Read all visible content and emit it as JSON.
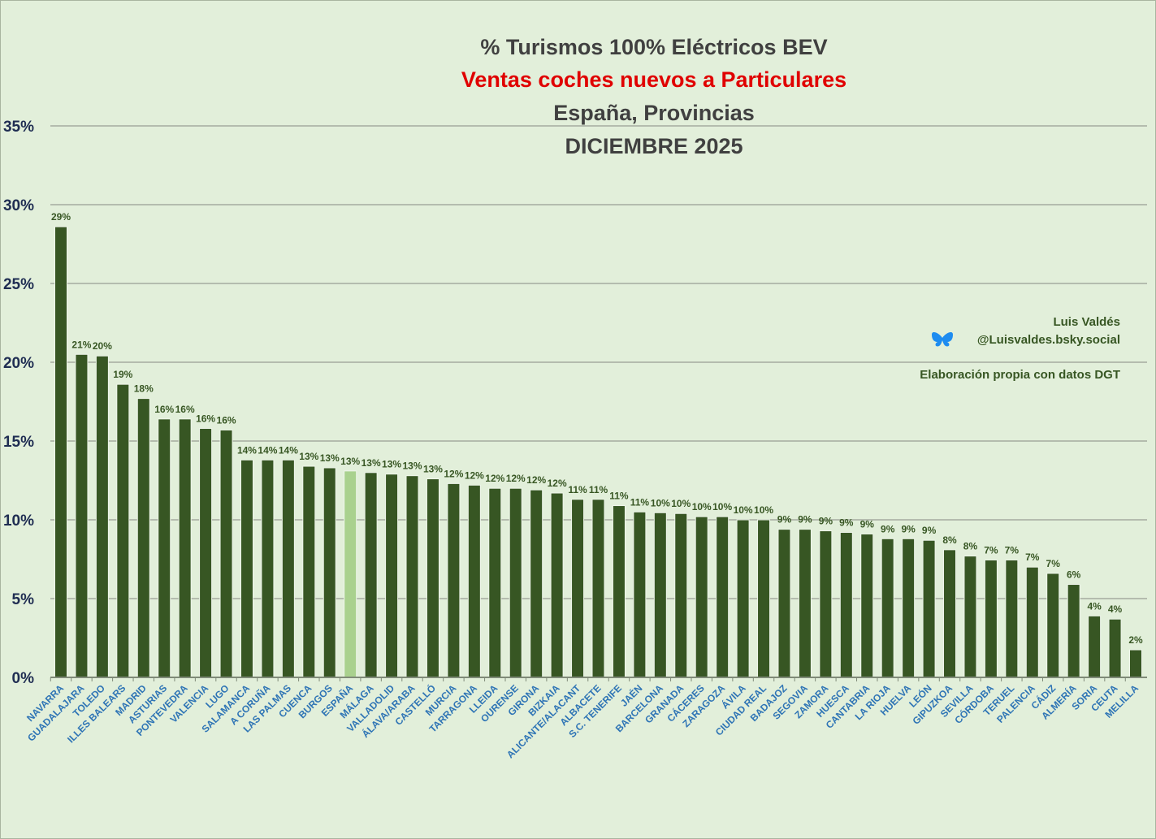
{
  "chart_data": {
    "type": "bar",
    "title": [
      "% Turismos 100% Eléctricos BEV",
      "Ventas coches nuevos a Particulares",
      "España, Provincias",
      "DICIEMBRE 2025"
    ],
    "xlabel": "",
    "ylabel": "",
    "ylim": [
      0,
      35
    ],
    "yticks": [
      0,
      5,
      10,
      15,
      20,
      25,
      30,
      35
    ],
    "ytick_labels": [
      "0%",
      "5%",
      "10%",
      "15%",
      "20%",
      "25%",
      "30%",
      "35%"
    ],
    "grid": true,
    "categories": [
      "NAVARRA",
      "GUADALAJARA",
      "TOLEDO",
      "ILLES BALEARS",
      "MADRID",
      "ASTURIAS",
      "PONTEVEDRA",
      "VALENCIA",
      "LUGO",
      "SALAMANCA",
      "A CORUÑA",
      "LAS PALMAS",
      "CUENCA",
      "BURGOS",
      "ESPAÑA",
      "MÁLAGA",
      "VALLADOLID",
      "ÁLAVA/ARABA",
      "CASTELLÓ",
      "MURCIA",
      "TARRAGONA",
      "LLEIDA",
      "OURENSE",
      "GIRONA",
      "BIZKAIA",
      "ALICANTE/ALACANT",
      "ALBACETE",
      "S.C. TENERIFE",
      "JAÉN",
      "BARCELONA",
      "GRANADA",
      "CÁCERES",
      "ZARAGOZA",
      "ÁVILA",
      "CIUDAD REAL",
      "BADAJOZ",
      "SEGOVIA",
      "ZAMORA",
      "HUESCA",
      "CANTABRIA",
      "LA RIOJA",
      "HUELVA",
      "LEÓN",
      "GIPUZKOA",
      "SEVILLA",
      "CÓRDOBA",
      "TERUEL",
      "PALENCIA",
      "CÁDIZ",
      "ALMERÍA",
      "SORIA",
      "CEUTA",
      "MELILLA"
    ],
    "values": [
      28.6,
      20.5,
      20.4,
      18.6,
      17.7,
      16.4,
      16.4,
      15.8,
      15.7,
      13.8,
      13.8,
      13.8,
      13.4,
      13.3,
      13.1,
      13.0,
      12.9,
      12.8,
      12.6,
      12.3,
      12.2,
      12.0,
      12.0,
      11.9,
      11.7,
      11.3,
      11.3,
      10.9,
      10.5,
      10.45,
      10.4,
      10.2,
      10.2,
      10.0,
      10.0,
      9.4,
      9.4,
      9.3,
      9.2,
      9.1,
      8.8,
      8.8,
      8.7,
      8.1,
      7.7,
      7.45,
      7.45,
      7.0,
      6.6,
      5.9,
      3.9,
      3.7,
      1.75
    ],
    "data_labels": [
      "29%",
      "21%",
      "20%",
      "19%",
      "18%",
      "16%",
      "16%",
      "16%",
      "16%",
      "14%",
      "14%",
      "14%",
      "13%",
      "13%",
      "13%",
      "13%",
      "13%",
      "13%",
      "13%",
      "12%",
      "12%",
      "12%",
      "12%",
      "12%",
      "12%",
      "11%",
      "11%",
      "11%",
      "11%",
      "10%",
      "10%",
      "10%",
      "10%",
      "10%",
      "10%",
      "9%",
      "9%",
      "9%",
      "9%",
      "9%",
      "9%",
      "9%",
      "9%",
      "8%",
      "8%",
      "7%",
      "7%",
      "7%",
      "7%",
      "6%",
      "4%",
      "4%",
      "2%"
    ],
    "highlight_category": "ESPAÑA",
    "colors": {
      "bar": "#375623",
      "highlight": "#a9d18e",
      "grid": "#a5ab9f",
      "title_accent": "#e00000"
    }
  },
  "credits": {
    "author": "Luis Valdés",
    "handle": "@Luisvaldes.bsky.social",
    "source": "Elaboración propia con datos DGT",
    "icon": "bluesky-butterfly-icon"
  }
}
